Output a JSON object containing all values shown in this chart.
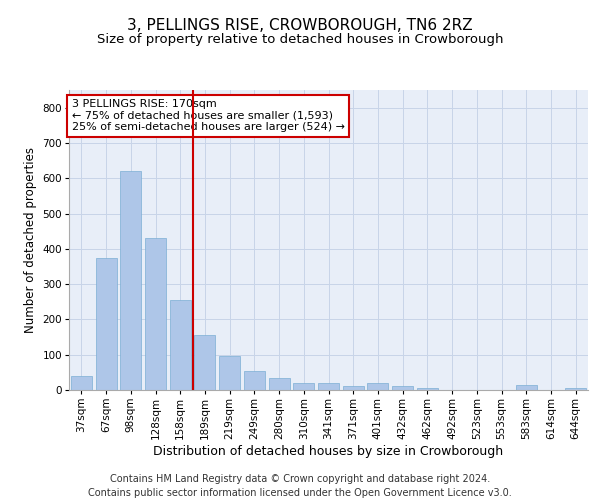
{
  "title1": "3, PELLINGS RISE, CROWBOROUGH, TN6 2RZ",
  "title2": "Size of property relative to detached houses in Crowborough",
  "xlabel": "Distribution of detached houses by size in Crowborough",
  "ylabel": "Number of detached properties",
  "categories": [
    "37sqm",
    "67sqm",
    "98sqm",
    "128sqm",
    "158sqm",
    "189sqm",
    "219sqm",
    "249sqm",
    "280sqm",
    "310sqm",
    "341sqm",
    "371sqm",
    "401sqm",
    "432sqm",
    "462sqm",
    "492sqm",
    "523sqm",
    "553sqm",
    "583sqm",
    "614sqm",
    "644sqm"
  ],
  "values": [
    40,
    375,
    620,
    430,
    255,
    155,
    95,
    55,
    35,
    20,
    20,
    10,
    20,
    10,
    5,
    0,
    0,
    0,
    15,
    0,
    5
  ],
  "bar_color": "#aec6e8",
  "bar_edgecolor": "#7bafd4",
  "vline_color": "#cc0000",
  "annotation_text": "3 PELLINGS RISE: 170sqm\n← 75% of detached houses are smaller (1,593)\n25% of semi-detached houses are larger (524) →",
  "annotation_box_color": "white",
  "annotation_box_edgecolor": "#cc0000",
  "ylim": [
    0,
    850
  ],
  "yticks": [
    0,
    100,
    200,
    300,
    400,
    500,
    600,
    700,
    800
  ],
  "grid_color": "#c8d4e8",
  "background_color": "#e8eef8",
  "footer_line1": "Contains HM Land Registry data © Crown copyright and database right 2024.",
  "footer_line2": "Contains public sector information licensed under the Open Government Licence v3.0.",
  "title1_fontsize": 11,
  "title2_fontsize": 9.5,
  "xlabel_fontsize": 9,
  "ylabel_fontsize": 8.5,
  "annotation_fontsize": 8,
  "footer_fontsize": 7,
  "tick_fontsize": 7.5
}
